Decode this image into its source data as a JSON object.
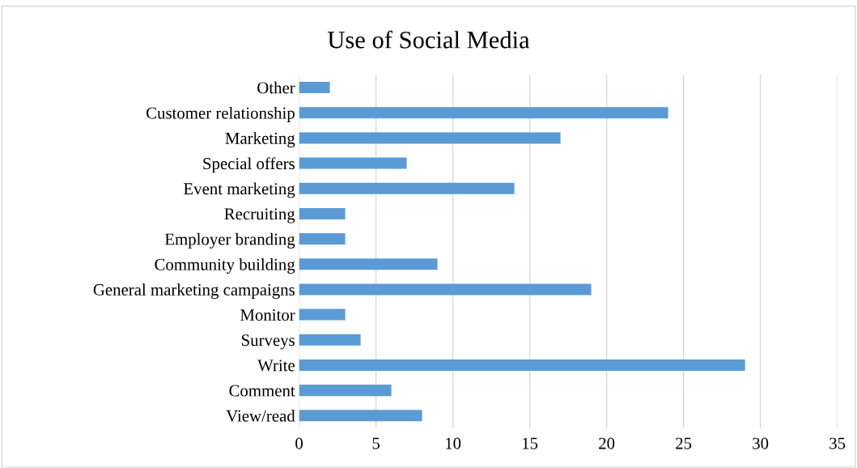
{
  "chart_data": {
    "type": "bar",
    "title": "Use of Social Media",
    "orientation": "horizontal",
    "categories": [
      "Other",
      "Customer relationship",
      "Marketing",
      "Special offers",
      "Event marketing",
      "Recruiting",
      "Employer branding",
      "Community building",
      "General marketing campaigns",
      "Monitor",
      "Surveys",
      "Write",
      "Comment",
      "View/read"
    ],
    "values": [
      2,
      24,
      17,
      7,
      14,
      3,
      3,
      9,
      19,
      3,
      4,
      29,
      6,
      8
    ],
    "color": "#5b9bd5",
    "xlim": [
      0,
      35
    ],
    "xticks": [
      0,
      5,
      10,
      15,
      20,
      25,
      30,
      35
    ],
    "grid": "x"
  }
}
